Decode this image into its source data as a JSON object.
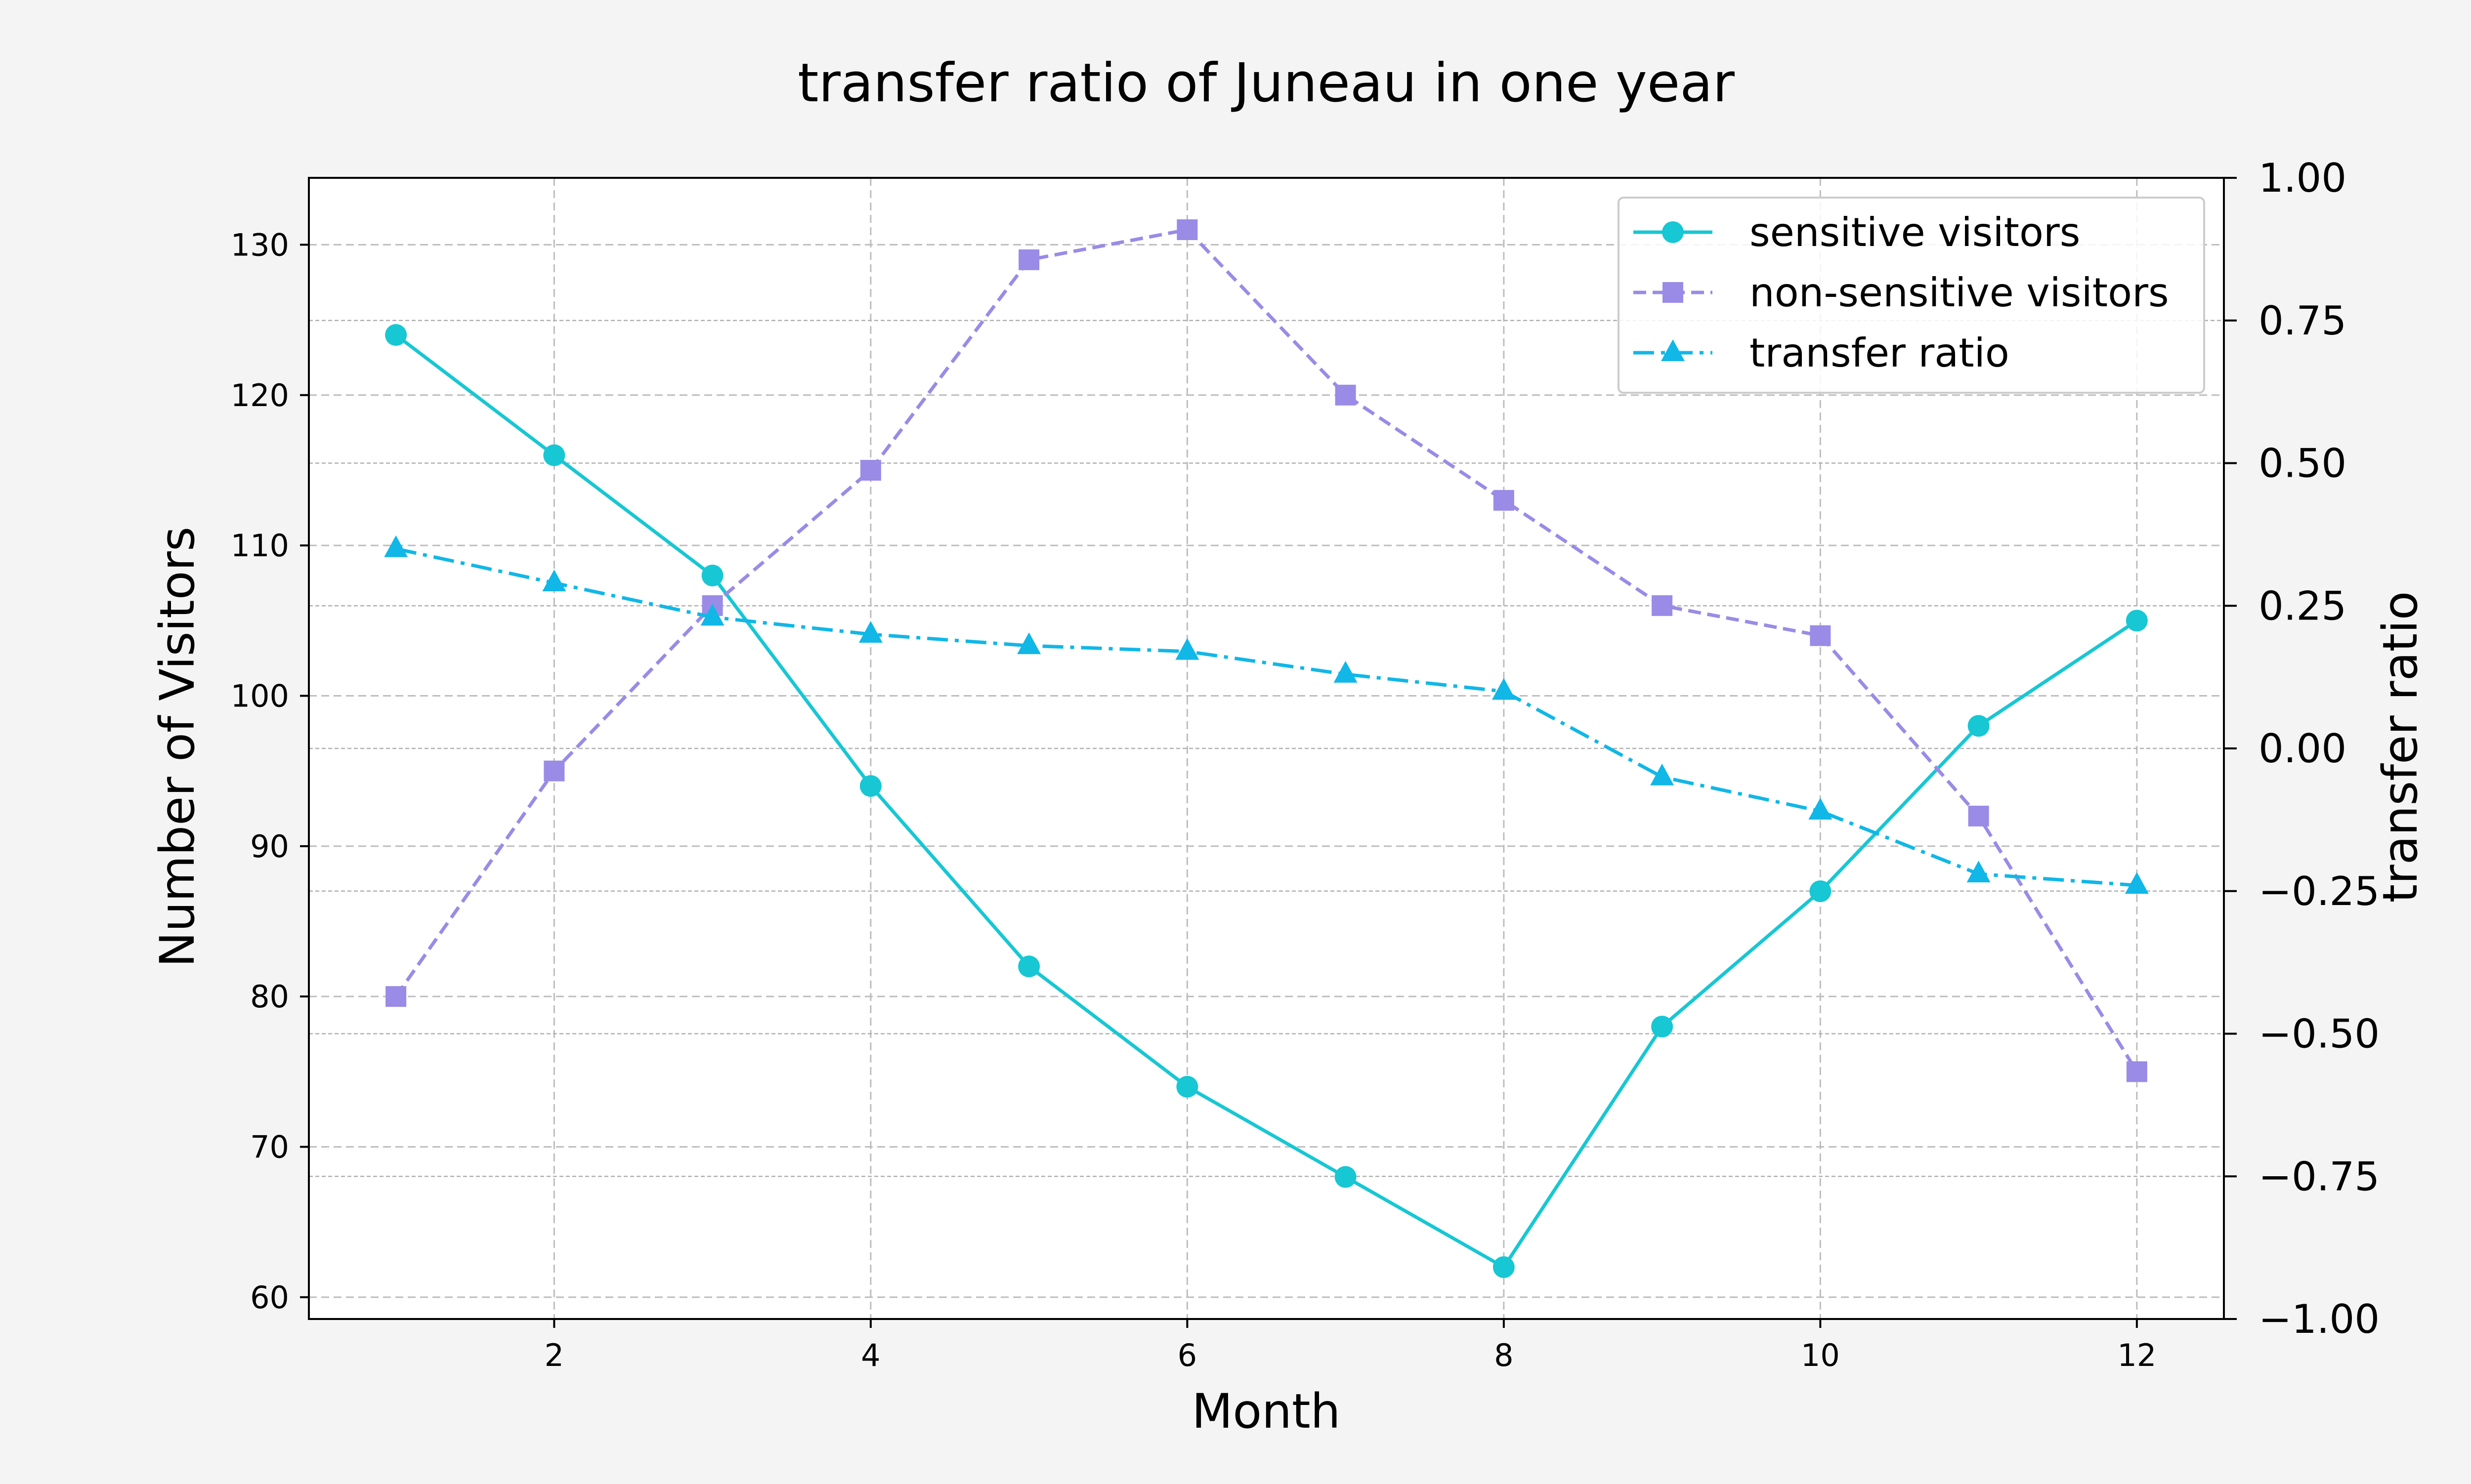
{
  "chart_data": {
    "type": "line",
    "title": "transfer ratio of Juneau in one year",
    "xlabel": "Month",
    "ylabel": "Number of Visitors",
    "y2label": "transfer ratio",
    "x": [
      1,
      2,
      3,
      4,
      5,
      6,
      7,
      8,
      9,
      10,
      11,
      12
    ],
    "xlim": [
      0.45,
      12.55
    ],
    "xticks": [
      2,
      4,
      6,
      8,
      10,
      12
    ],
    "ylim": [
      58.55,
      134.45
    ],
    "yticks": [
      60,
      70,
      80,
      90,
      100,
      110,
      120,
      130
    ],
    "y2lim": [
      -1.0,
      1.0
    ],
    "y2ticks": [
      -1.0,
      -0.75,
      -0.5,
      -0.25,
      0.0,
      0.25,
      0.5,
      0.75,
      1.0
    ],
    "y2ticklabels": [
      "−1.00",
      "−0.75",
      "−0.50",
      "−0.25",
      "0.00",
      "0.25",
      "0.50",
      "0.75",
      "1.00"
    ],
    "grid": true,
    "legend_position": "top-right",
    "series": [
      {
        "name": "sensitive visitors",
        "axis": "left",
        "color": "#17c7d3",
        "linestyle": "solid",
        "marker": "circle",
        "values": [
          124,
          116,
          108,
          94,
          82,
          74,
          68,
          62,
          78,
          87,
          98,
          105
        ]
      },
      {
        "name": "non-sensitive visitors",
        "axis": "left",
        "color": "#9a8be6",
        "linestyle": "dashed",
        "marker": "square",
        "values": [
          80,
          95,
          106,
          115,
          129,
          131,
          120,
          113,
          106,
          104,
          92,
          75
        ]
      },
      {
        "name": "transfer ratio",
        "axis": "right",
        "color": "#11b7e6",
        "linestyle": "dashdot",
        "marker": "triangle",
        "values": [
          0.35,
          0.29,
          0.23,
          0.2,
          0.18,
          0.17,
          0.13,
          0.1,
          -0.05,
          -0.11,
          -0.22,
          -0.24
        ]
      }
    ]
  }
}
